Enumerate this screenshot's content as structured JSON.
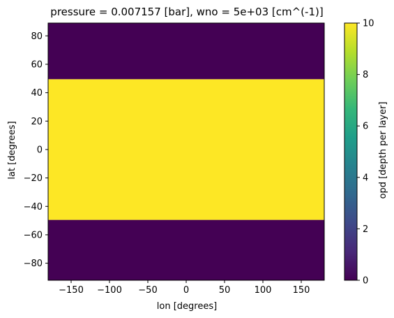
{
  "chart_data": {
    "type": "heatmap",
    "title": "pressure = 0.007157 [bar], wno = 5e+03 [cm^(-1)]",
    "xlabel": "lon [degrees]",
    "ylabel": "lat [degrees]",
    "colorbar_label": "opd [depth per layer]",
    "xlim": [
      -180,
      180
    ],
    "ylim": [
      -92,
      89
    ],
    "x_ticks": [
      -150,
      -100,
      -50,
      0,
      50,
      100,
      150
    ],
    "y_ticks": [
      -80,
      -60,
      -40,
      -20,
      0,
      20,
      40,
      60,
      80
    ],
    "colorbar_range": [
      0,
      10
    ],
    "colorbar_ticks": [
      0,
      2,
      4,
      6,
      8,
      10
    ],
    "colormap": "viridis",
    "grid": false,
    "bands": [
      {
        "lat_min": -92,
        "lat_max": -49.5,
        "value": 0
      },
      {
        "lat_min": -49.5,
        "lat_max": 49.5,
        "value": 10
      },
      {
        "lat_min": 49.5,
        "lat_max": 89,
        "value": 0
      }
    ],
    "colors": {
      "low": "#440154",
      "high": "#fde725",
      "viridis_stops": [
        "#440154",
        "#482878",
        "#3e4989",
        "#31688e",
        "#26828e",
        "#1f9e89",
        "#35b779",
        "#6ece58",
        "#b5de2b",
        "#fde725"
      ]
    }
  }
}
